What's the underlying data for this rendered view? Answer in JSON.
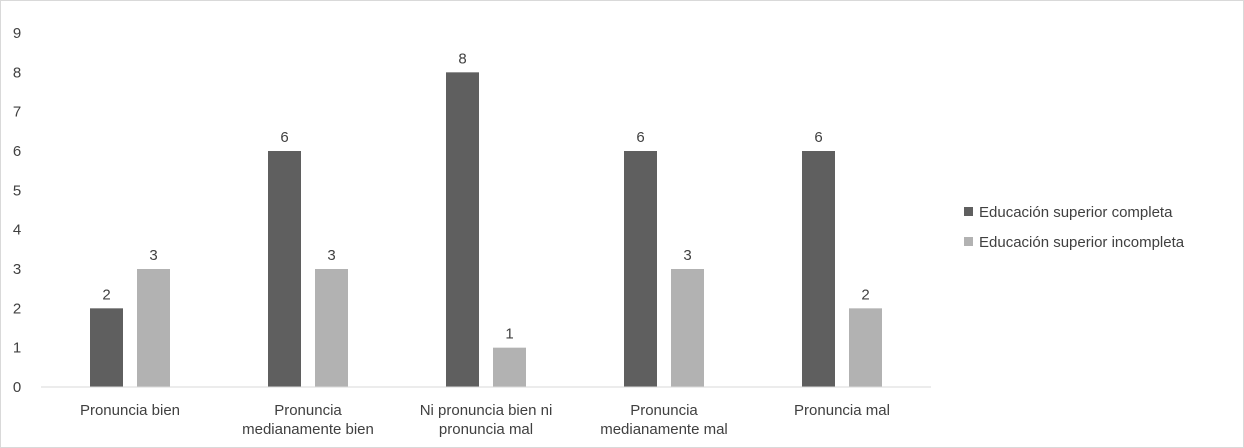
{
  "chart_data": {
    "type": "bar",
    "title": "",
    "xlabel": "",
    "ylabel": "",
    "ylim": [
      0,
      9
    ],
    "yticks": [
      0,
      1,
      2,
      3,
      4,
      5,
      6,
      7,
      8,
      9
    ],
    "grid": false,
    "legend_position": "right",
    "categories": [
      [
        "Pronuncia bien"
      ],
      [
        "Pronuncia",
        "medianamente bien"
      ],
      [
        "Ni pronuncia bien ni",
        "pronuncia mal"
      ],
      [
        "Pronuncia",
        "medianamente mal"
      ],
      [
        "Pronuncia mal"
      ]
    ],
    "series": [
      {
        "name": "Educación superior completa",
        "color": "#5f5f5f",
        "values": [
          2,
          6,
          8,
          6,
          6
        ]
      },
      {
        "name": "Educación superior incompleta",
        "color": "#b2b2b2",
        "values": [
          3,
          3,
          1,
          3,
          2
        ]
      }
    ]
  }
}
